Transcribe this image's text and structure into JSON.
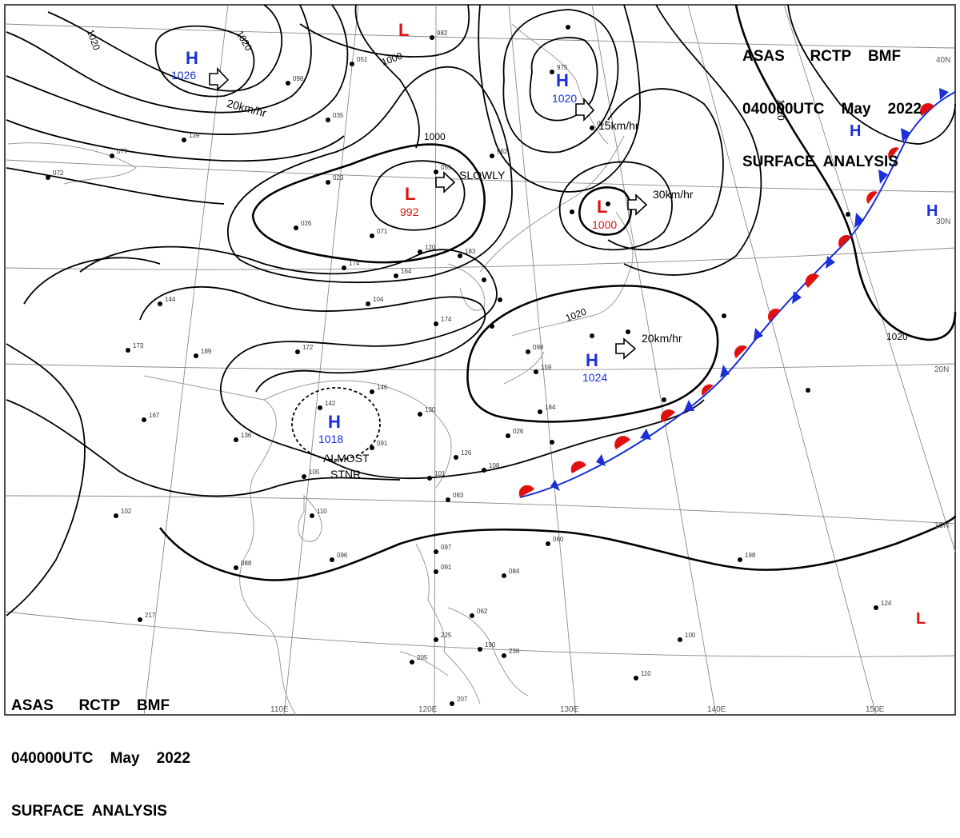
{
  "header_top": {
    "line1": "ASAS      RCTP    BMF",
    "line2": "040000UTC    May    2022",
    "line3": "SURFACE  ANALYSIS"
  },
  "header_bottom": {
    "line1": "ASAS      RCTP    BMF",
    "line2": "040000UTC    May    2022",
    "line3": "SURFACE  ANALYSIS"
  },
  "longitude_labels": [
    "110E",
    "120E",
    "130E",
    "140E",
    "150E"
  ],
  "latitude_labels": [
    "40N",
    "30N",
    "20N",
    "10N"
  ],
  "pressure_centers": [
    {
      "type": "H",
      "value": "1026",
      "color": "#1a2fd8"
    },
    {
      "type": "L",
      "value": "992",
      "color": "#e01010"
    },
    {
      "type": "H",
      "value": "1020",
      "color": "#1a2fd8"
    },
    {
      "type": "L",
      "value": "1000",
      "color": "#e01010"
    },
    {
      "type": "H",
      "value": "1024",
      "color": "#1a2fd8"
    },
    {
      "type": "H",
      "value": "1018",
      "color": "#1a2fd8"
    },
    {
      "type": "L",
      "value": "",
      "color": "#e01010"
    },
    {
      "type": "H",
      "value": "",
      "color": "#1a2fd8"
    },
    {
      "type": "H",
      "value": "",
      "color": "#1a2fd8"
    },
    {
      "type": "L",
      "value": "",
      "color": "#e01010"
    }
  ],
  "movement_labels": [
    "20km/hr",
    "SLOWLY",
    "15km/hr",
    "30km/hr",
    "20km/hr"
  ],
  "stationary_label": [
    "ALMOST",
    "STNR"
  ],
  "isobar_labels": [
    "1020",
    "1020",
    "1000",
    "1000",
    "1020",
    "1020",
    "1020"
  ],
  "colors": {
    "high": "#1a2fd8",
    "low": "#e01010",
    "front_warm": "#e01010",
    "front_cold": "#1a2fd8"
  },
  "station_values": [
    "982",
    "051",
    "098",
    "035",
    "139",
    "077",
    "072",
    "023",
    "055",
    "962",
    "975",
    "057",
    "026",
    "071",
    "120",
    "183",
    "174",
    "164",
    "144",
    "104",
    "174",
    "173",
    "189",
    "172",
    "167",
    "136",
    "142",
    "146",
    "130",
    "091",
    "126",
    "108",
    "101",
    "083",
    "105",
    "110",
    "102",
    "088",
    "096",
    "097",
    "091",
    "084",
    "060",
    "062",
    "225",
    "190",
    "238",
    "205",
    "207",
    "217",
    "198",
    "124",
    "100",
    "110",
    "098",
    "159",
    "184",
    "026"
  ]
}
